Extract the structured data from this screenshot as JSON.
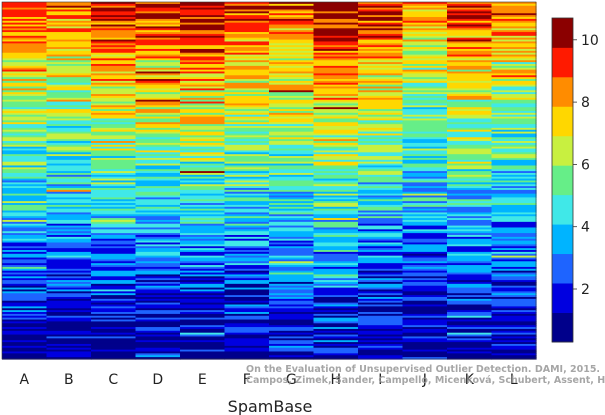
{
  "chart_data": {
    "type": "heatmap",
    "title": "",
    "xlabel": "SpamBase",
    "ylabel": "",
    "categories": [
      "A",
      "B",
      "C",
      "D",
      "E",
      "F",
      "G",
      "H",
      "I",
      "J",
      "K",
      "L"
    ],
    "colorbar": {
      "ticks": [
        2,
        4,
        6,
        8,
        10
      ],
      "range": [
        0.3,
        10.7
      ],
      "levels": 11,
      "colors": [
        "#00008b",
        "#0000e0",
        "#1e64ff",
        "#00b4ff",
        "#40e8e8",
        "#66ee88",
        "#c8f040",
        "#ffd700",
        "#ff8c00",
        "#ff1a00",
        "#8b0000"
      ]
    },
    "column_profiles": [
      {
        "name": "A",
        "top": 9.2,
        "bottom": 0.6
      },
      {
        "name": "B",
        "top": 8.6,
        "bottom": 0.7
      },
      {
        "name": "C",
        "top": 10.2,
        "bottom": 0.5
      },
      {
        "name": "D",
        "top": 10.1,
        "bottom": 0.6
      },
      {
        "name": "E",
        "top": 10.6,
        "bottom": 0.6
      },
      {
        "name": "F",
        "top": 9.6,
        "bottom": 0.8
      },
      {
        "name": "G",
        "top": 9.0,
        "bottom": 1.0
      },
      {
        "name": "H",
        "top": 10.3,
        "bottom": 1.4
      },
      {
        "name": "I",
        "top": 9.6,
        "bottom": 0.5
      },
      {
        "name": "J",
        "top": 8.2,
        "bottom": 0.7
      },
      {
        "name": "K",
        "top": 9.6,
        "bottom": 0.5
      },
      {
        "name": "L",
        "top": 8.8,
        "bottom": 0.6
      }
    ]
  },
  "watermark": {
    "line1": "On the Evaluation of Unsupervised Outlier Detection. DAMI, 2015.",
    "line2": "Campos, Zimek, Sander, Campello, Micenková, Schubert, Assent, Houle"
  }
}
